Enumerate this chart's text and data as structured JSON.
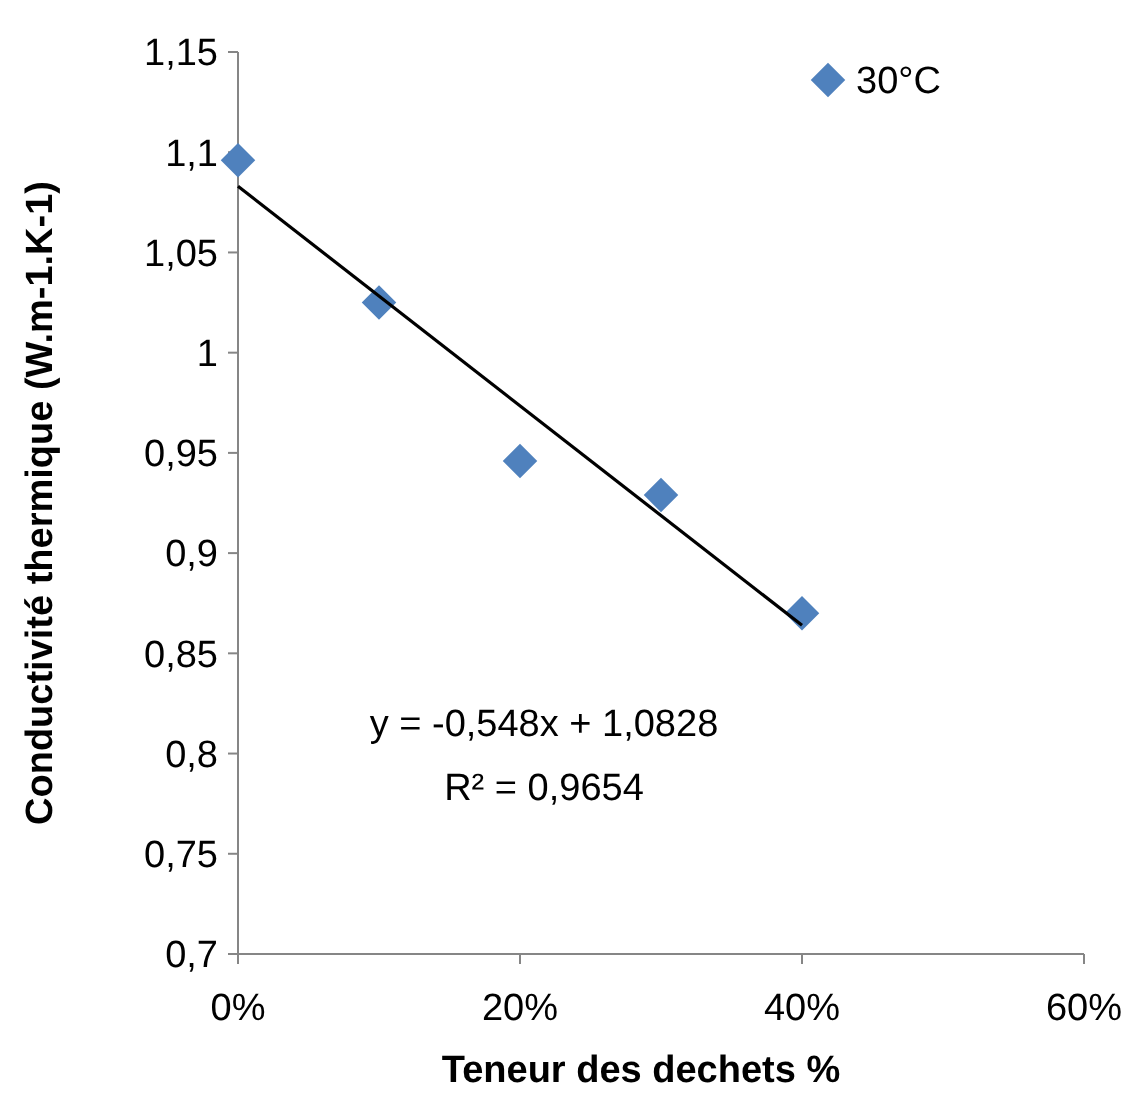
{
  "chart_data": {
    "type": "scatter",
    "xlabel": "Teneur des dechets %",
    "ylabel": "Conductivité thermique (W.m-1.K-1)",
    "xlim": [
      0,
      0.6
    ],
    "xticks": [
      {
        "value": 0,
        "label": "0%"
      },
      {
        "value": 0.2,
        "label": "20%"
      },
      {
        "value": 0.4,
        "label": "40%"
      },
      {
        "value": 0.6,
        "label": "60%"
      }
    ],
    "ylim": [
      0.7,
      1.15
    ],
    "yticks": [
      {
        "value": 0.7,
        "label": "0,7"
      },
      {
        "value": 0.75,
        "label": "0,75"
      },
      {
        "value": 0.8,
        "label": "0,8"
      },
      {
        "value": 0.85,
        "label": "0,85"
      },
      {
        "value": 0.9,
        "label": "0,9"
      },
      {
        "value": 0.95,
        "label": "0,95"
      },
      {
        "value": 1,
        "label": "1"
      },
      {
        "value": 1.05,
        "label": "1,05"
      },
      {
        "value": 1.1,
        "label": "1,1"
      },
      {
        "value": 1.15,
        "label": "1,15"
      }
    ],
    "grid": false,
    "legend": "top right",
    "series": [
      {
        "name": "30°C",
        "marker": "diamond",
        "color": "#4f81bd",
        "x": [
          0,
          0.1,
          0.2,
          0.3,
          0.4
        ],
        "values": [
          1.096,
          1.025,
          0.946,
          0.929,
          0.87
        ]
      },
      {
        "type": "line",
        "color": "#000000",
        "x": [
          0,
          0.4
        ],
        "values": [
          1.083,
          0.864
        ],
        "marker": "none",
        "line_style": "solid"
      }
    ],
    "annotations": [
      "y = -0,548x + 1,0828",
      "R² = 0,9654"
    ]
  }
}
